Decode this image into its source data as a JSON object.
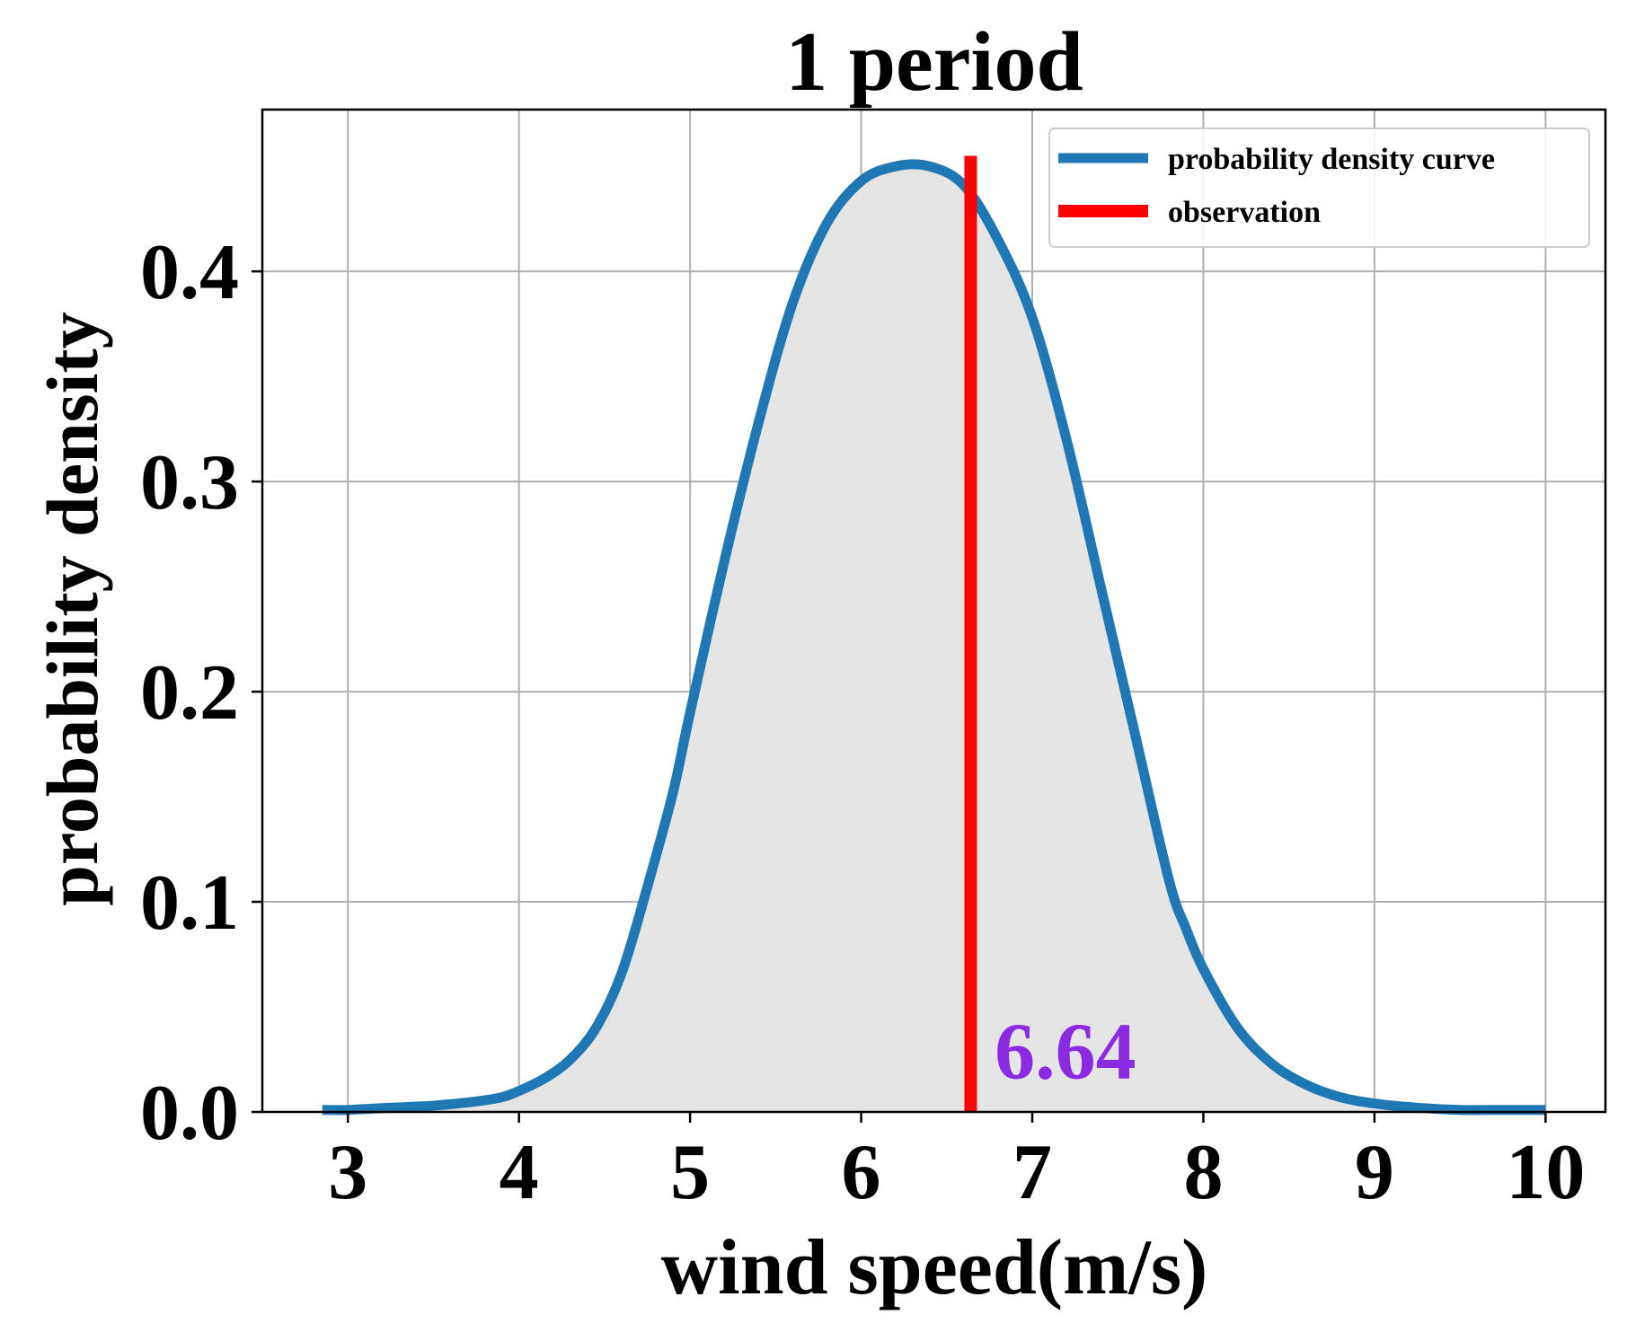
{
  "chart_data": {
    "type": "line",
    "title": "1 period",
    "xlabel": "wind speed(m/s)",
    "ylabel": "probability density",
    "xlim": [
      2.5,
      10.35
    ],
    "ylim": [
      0.0,
      0.477
    ],
    "xticks": [
      3,
      4,
      5,
      6,
      7,
      8,
      9,
      10
    ],
    "yticks": [
      0.0,
      0.1,
      0.2,
      0.3,
      0.4
    ],
    "xtick_labels": [
      "3",
      "4",
      "5",
      "6",
      "7",
      "8",
      "9",
      "10"
    ],
    "ytick_labels": [
      "0.0",
      "0.1",
      "0.2",
      "0.3",
      "0.4"
    ],
    "grid": true,
    "legend_position": "top-right",
    "fill_under_curve": true,
    "fill_color": "#e5e5e5",
    "series": [
      {
        "name": "probability density curve",
        "color": "#1f77b4",
        "x": [
          2.85,
          3.0,
          3.25,
          3.5,
          3.75,
          3.9,
          4.0,
          4.15,
          4.3,
          4.45,
          4.6,
          4.75,
          4.9,
          5.0,
          5.2,
          5.4,
          5.6,
          5.8,
          6.0,
          6.2,
          6.4,
          6.6,
          6.8,
          7.0,
          7.2,
          7.4,
          7.6,
          7.8,
          7.9,
          8.0,
          8.2,
          8.4,
          8.6,
          8.8,
          9.0,
          9.25,
          9.5,
          9.75,
          10.0
        ],
        "y": [
          0.001,
          0.001,
          0.002,
          0.003,
          0.005,
          0.007,
          0.01,
          0.016,
          0.025,
          0.04,
          0.066,
          0.107,
          0.152,
          0.19,
          0.262,
          0.328,
          0.385,
          0.423,
          0.443,
          0.45,
          0.45,
          0.441,
          0.415,
          0.378,
          0.32,
          0.25,
          0.18,
          0.11,
          0.087,
          0.068,
          0.04,
          0.023,
          0.013,
          0.007,
          0.004,
          0.002,
          0.001,
          0.001,
          0.001
        ]
      },
      {
        "name": "observation",
        "color": "#ff0000",
        "x": [
          6.64,
          6.64
        ],
        "y": [
          0.0,
          0.455
        ]
      }
    ],
    "annotations": [
      {
        "text": "6.64",
        "x": 6.78,
        "y": 0.016,
        "color": "#8a2be2"
      }
    ]
  }
}
